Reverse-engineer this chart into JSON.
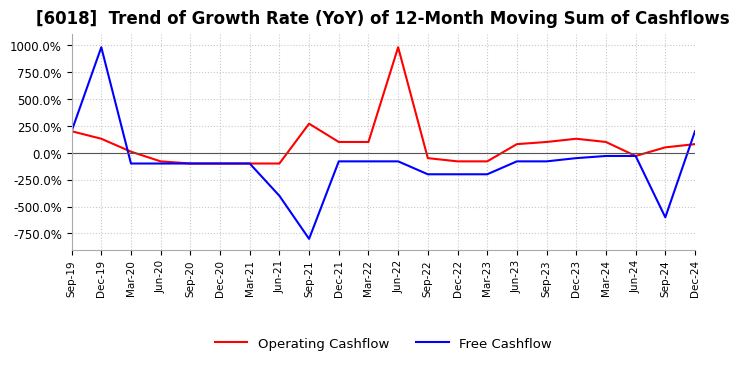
{
  "title": "[6018]  Trend of Growth Rate (YoY) of 12-Month Moving Sum of Cashflows",
  "title_fontsize": 12,
  "ylim": [
    -900,
    1100
  ],
  "yticks": [
    -750,
    -500,
    -250,
    0,
    250,
    500,
    750,
    1000
  ],
  "ytick_labels": [
    "-750.0%",
    "-500.0%",
    "-250.0%",
    "0.0%",
    "250.0%",
    "500.0%",
    "750.0%",
    "1000.0%"
  ],
  "legend_labels": [
    "Operating Cashflow",
    "Free Cashflow"
  ],
  "legend_colors": [
    "red",
    "blue"
  ],
  "background_color": "#ffffff",
  "grid_color": "#c8c8c8",
  "x_labels": [
    "Sep-19",
    "Dec-19",
    "Mar-20",
    "Jun-20",
    "Sep-20",
    "Dec-20",
    "Mar-21",
    "Jun-21",
    "Sep-21",
    "Dec-21",
    "Mar-22",
    "Jun-22",
    "Sep-22",
    "Dec-22",
    "Mar-23",
    "Jun-23",
    "Sep-23",
    "Dec-23",
    "Mar-24",
    "Jun-24",
    "Sep-24",
    "Dec-24"
  ],
  "operating_cashflow": [
    200,
    130,
    10,
    -80,
    -100,
    -100,
    -100,
    -100,
    270,
    100,
    100,
    980,
    -50,
    -80,
    -80,
    80,
    100,
    130,
    100,
    -30,
    50,
    80
  ],
  "free_cashflow": [
    200,
    980,
    -100,
    -100,
    -100,
    -100,
    -100,
    -400,
    -800,
    -80,
    -80,
    -80,
    -200,
    -200,
    -200,
    -80,
    -80,
    -50,
    -30,
    -30,
    -600,
    200
  ]
}
